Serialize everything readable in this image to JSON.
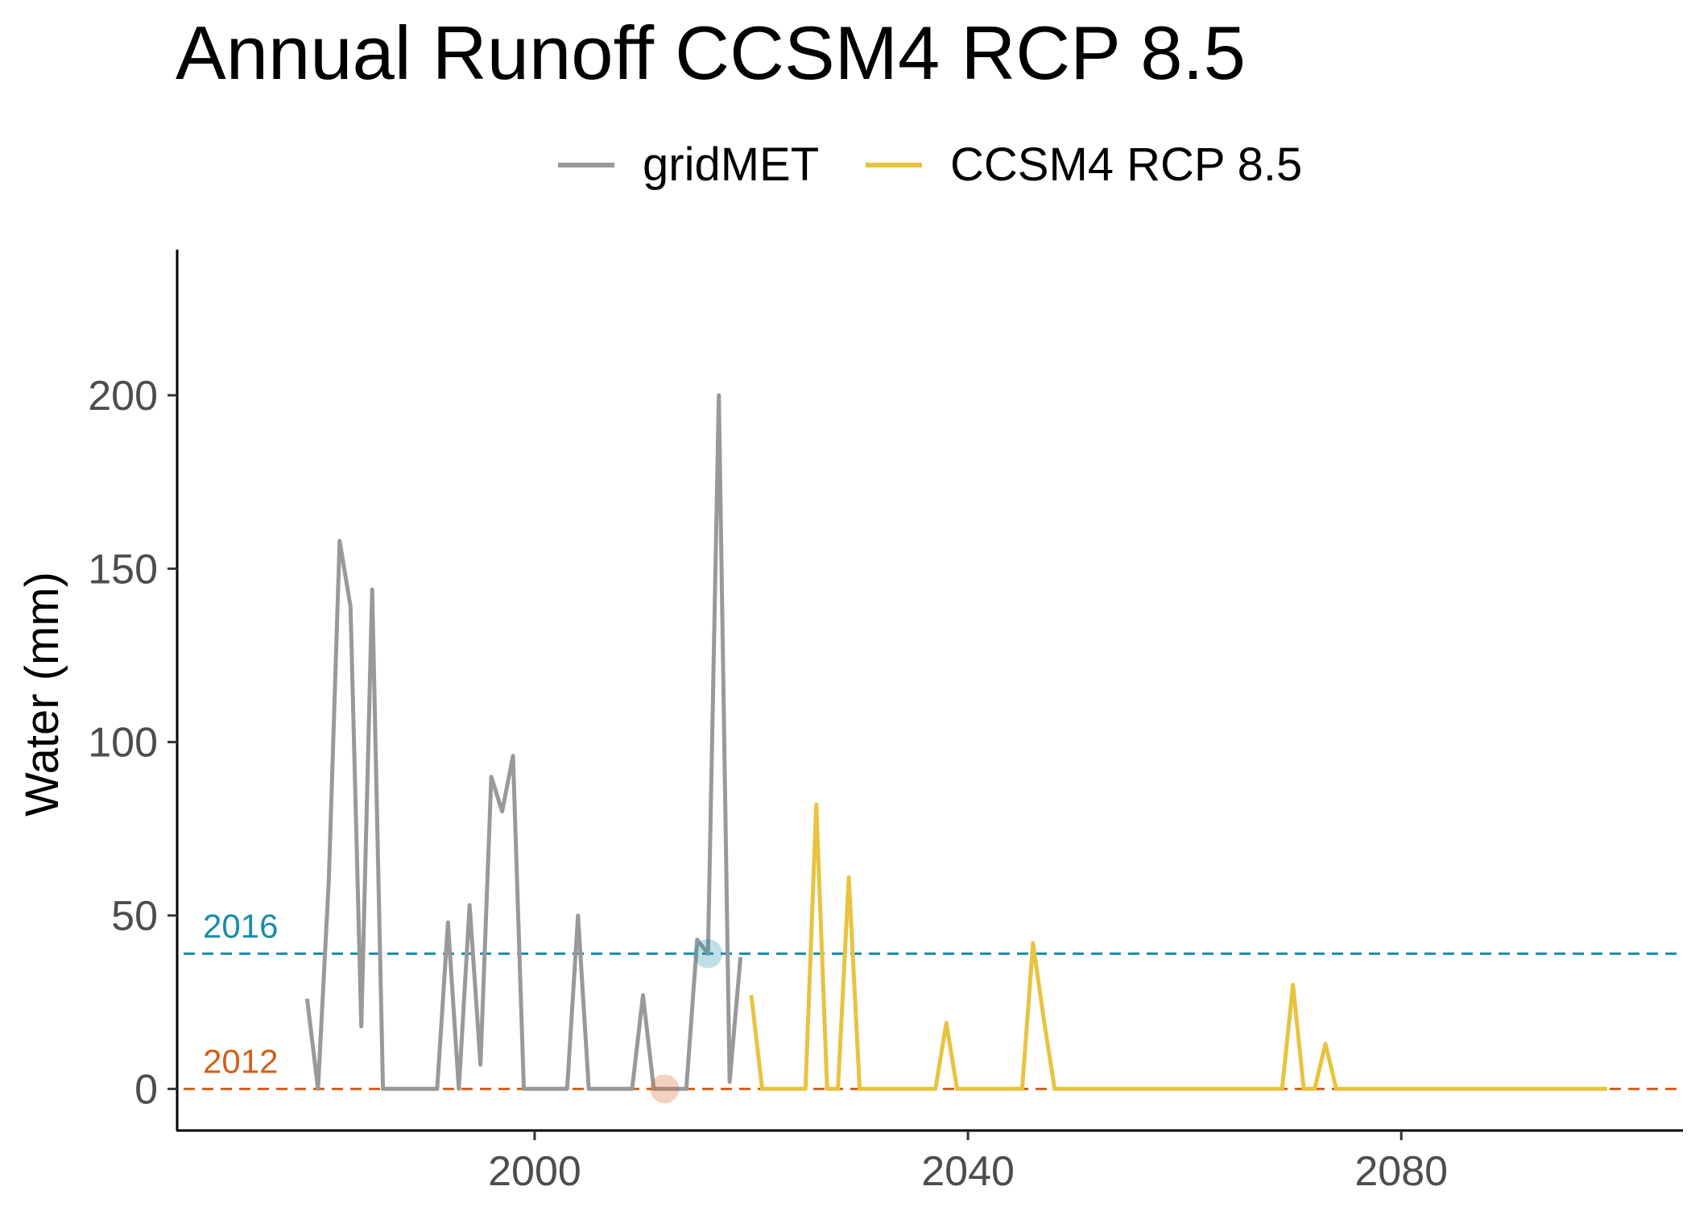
{
  "chart_data": {
    "type": "line",
    "title": "Annual Runoff CCSM4 RCP 8.5",
    "xlabel": "",
    "ylabel": "Water (mm)",
    "xlim": [
      1967,
      2106
    ],
    "ylim": [
      -12,
      242
    ],
    "x_ticks": [
      2000,
      2040,
      2080
    ],
    "y_ticks": [
      0,
      50,
      100,
      150,
      200
    ],
    "grid": false,
    "legend_position": "top",
    "series": [
      {
        "name": "gridMET",
        "color": "#999999",
        "x": [
          1979,
          1980,
          1981,
          1982,
          1983,
          1984,
          1985,
          1986,
          1987,
          1988,
          1989,
          1990,
          1991,
          1992,
          1993,
          1994,
          1995,
          1996,
          1997,
          1998,
          1999,
          2000,
          2001,
          2002,
          2003,
          2004,
          2005,
          2006,
          2007,
          2008,
          2009,
          2010,
          2011,
          2012,
          2013,
          2014,
          2015,
          2016,
          2017,
          2018,
          2019
        ],
        "values": [
          26,
          0,
          60,
          158,
          139,
          18,
          144,
          0,
          0,
          0,
          0,
          0,
          0,
          48,
          0,
          53,
          7,
          90,
          80,
          96,
          0,
          0,
          0,
          0,
          0,
          50,
          0,
          0,
          0,
          0,
          0,
          27,
          0,
          0,
          0,
          0,
          43,
          39,
          200,
          2,
          38
        ]
      },
      {
        "name": "CCSM4 RCP 8.5",
        "color": "#E8C33E",
        "x": [
          2020,
          2021,
          2022,
          2023,
          2024,
          2025,
          2026,
          2027,
          2028,
          2029,
          2030,
          2031,
          2032,
          2033,
          2034,
          2035,
          2036,
          2037,
          2038,
          2039,
          2040,
          2041,
          2042,
          2043,
          2044,
          2045,
          2046,
          2047,
          2048,
          2049,
          2050,
          2051,
          2052,
          2053,
          2054,
          2055,
          2056,
          2057,
          2058,
          2059,
          2060,
          2061,
          2062,
          2063,
          2064,
          2065,
          2066,
          2067,
          2068,
          2069,
          2070,
          2071,
          2072,
          2073,
          2074,
          2075,
          2076,
          2077,
          2078,
          2079,
          2080,
          2081,
          2082,
          2083,
          2084,
          2085,
          2086,
          2087,
          2088,
          2089,
          2090,
          2091,
          2092,
          2093,
          2094,
          2095,
          2096,
          2097,
          2098,
          2099
        ],
        "values": [
          27,
          0,
          0,
          0,
          0,
          0,
          82,
          0,
          0,
          61,
          0,
          0,
          0,
          0,
          0,
          0,
          0,
          0,
          19,
          0,
          0,
          0,
          0,
          0,
          0,
          0,
          42,
          20,
          0,
          0,
          0,
          0,
          0,
          0,
          0,
          0,
          0,
          0,
          0,
          0,
          0,
          0,
          0,
          0,
          0,
          0,
          0,
          0,
          0,
          0,
          30,
          0,
          0,
          13,
          0,
          0,
          0,
          0,
          0,
          0,
          0,
          0,
          0,
          0,
          0,
          0,
          0,
          0,
          0,
          0,
          0,
          0,
          0,
          0,
          0,
          0,
          0,
          0,
          0,
          0
        ]
      }
    ],
    "reference_lines": [
      {
        "label": "2016",
        "value": 39,
        "color": "#1A8BAA",
        "marker_x": 2016
      },
      {
        "label": "2012",
        "value": 0,
        "color": "#D2601A",
        "marker_x": 2012
      }
    ]
  }
}
